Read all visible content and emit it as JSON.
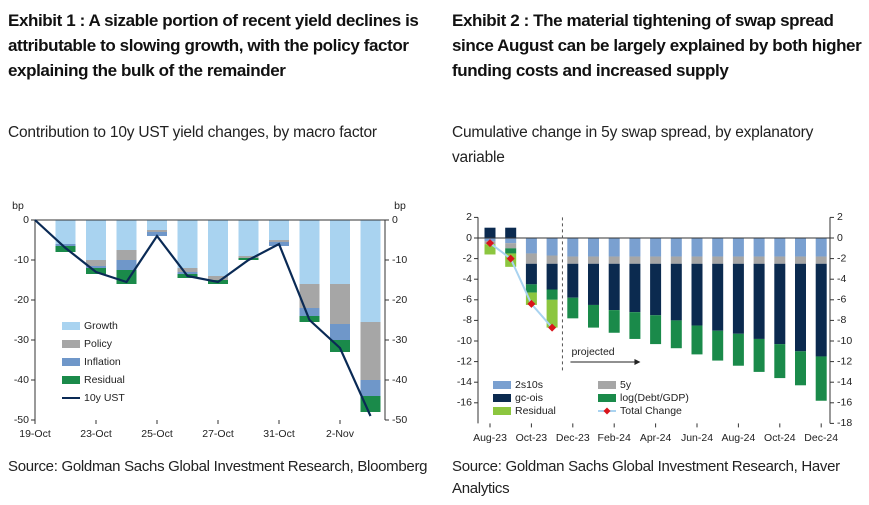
{
  "chart_data": [
    {
      "type": "bar",
      "title": "Exhibit 1 : A sizable portion of recent yield declines is attributable to slowing growth, with the policy factor explaining the bulk of the remainder",
      "subtitle": "Contribution to 10y UST yield changes, by macro factor",
      "source": "Source: Goldman Sachs Global Investment Research, Bloomberg",
      "y_axis_label": "bp",
      "y2_axis_label": "bp",
      "categories": [
        "19-Oct",
        null,
        "23-Oct",
        null,
        "25-Oct",
        null,
        "27-Oct",
        null,
        "31-Oct",
        null,
        "2-Nov",
        null
      ],
      "series": [
        {
          "name": "Growth",
          "color": "#a9d3f0",
          "values": [
            0,
            -6,
            -10,
            -7.5,
            -2.5,
            -12,
            -14,
            -9,
            -5,
            -16,
            -16,
            -25.5
          ]
        },
        {
          "name": "Policy",
          "color": "#a6a6a6",
          "values": [
            0,
            0,
            -1.5,
            -2.5,
            -0.5,
            -1,
            -1,
            -0.5,
            -0.5,
            -6,
            -10,
            -14.5
          ]
        },
        {
          "name": "Inflation",
          "color": "#6f97c9",
          "values": [
            0,
            -0.5,
            -0.5,
            -2.5,
            -1,
            -0.5,
            0,
            0,
            -1,
            -2,
            -4,
            -4
          ]
        },
        {
          "name": "Residual",
          "color": "#1a8a4a",
          "values": [
            0,
            -1.5,
            -1.5,
            -3.5,
            0,
            -1,
            -1,
            -0.5,
            0,
            -1.5,
            -3,
            -4
          ]
        },
        {
          "name": "10y UST",
          "color": "#0a2a55",
          "type": "line",
          "values": [
            0,
            -7,
            -13,
            -15.5,
            -4,
            -14,
            -15.5,
            -10,
            -6,
            -25,
            -32,
            -49
          ]
        }
      ],
      "ylim": [
        -50,
        0
      ],
      "yticks": [
        0,
        -10,
        -20,
        -30,
        -40,
        -50
      ],
      "y2lim": [
        -50,
        0
      ],
      "y2ticks": [
        0,
        -10,
        -20,
        -30,
        -40,
        -50
      ]
    },
    {
      "type": "bar",
      "title": "Exhibit 2 : The material tightening of swap spread since August can be largely explained by both higher funding costs and increased supply",
      "subtitle": "Cumulative change in 5y swap spread, by explanatory variable",
      "source": "Source: Goldman Sachs Global Investment Research, Haver Analytics",
      "categories": [
        "Aug-23",
        null,
        "Oct-23",
        null,
        "Dec-23",
        null,
        "Feb-24",
        null,
        "Apr-24",
        null,
        "Jun-24",
        null,
        "Aug-24",
        null,
        "Oct-24",
        null,
        "Dec-24"
      ],
      "series": [
        {
          "name": "2s10s",
          "color": "#7aa0d0",
          "values": [
            -0.3,
            -0.5,
            -1.5,
            -1.7,
            -1.8,
            -1.8,
            -1.8,
            -1.8,
            -1.8,
            -1.8,
            -1.8,
            -1.8,
            -1.8,
            -1.8,
            -1.8,
            -1.8,
            -1.8
          ]
        },
        {
          "name": "5y",
          "color": "#a6a6a6",
          "values": [
            -0.3,
            -0.5,
            -1,
            -0.8,
            -0.7,
            -0.7,
            -0.7,
            -0.7,
            -0.7,
            -0.7,
            -0.7,
            -0.7,
            -0.7,
            -0.7,
            -0.7,
            -0.7,
            -0.7
          ]
        },
        {
          "name": "gc-ois",
          "color": "#0b2a4f",
          "values": [
            1,
            1,
            -2,
            -2.5,
            -3.3,
            -4,
            -4.5,
            -4.7,
            -5,
            -5.5,
            -6,
            -6.5,
            -6.8,
            -7.3,
            -7.8,
            -8.5,
            -9
          ]
        },
        {
          "name": "log(Debt/GDP)",
          "color": "#1a8a4a",
          "values": [
            0,
            -0.5,
            -0.8,
            -1,
            -2,
            -2.2,
            -2.2,
            -2.6,
            -2.8,
            -2.7,
            -2.8,
            -2.9,
            -3.1,
            -3.2,
            -3.3,
            -3.3,
            -4.3
          ]
        },
        {
          "name": "Residual",
          "color": "#8cc63f",
          "values": [
            -1,
            -1.3,
            -1.2,
            -2.7,
            null,
            null,
            null,
            null,
            null,
            null,
            null,
            null,
            null,
            null,
            null,
            null,
            null
          ]
        },
        {
          "name": "Total Change",
          "color": "#a9d3f0",
          "type": "line",
          "marker": "diamond",
          "marker_color": "#d9141b",
          "values": [
            -0.5,
            -2,
            -6.4,
            -8.7,
            null,
            null,
            null,
            null,
            null,
            null,
            null,
            null,
            null,
            null,
            null,
            null,
            null
          ]
        }
      ],
      "annotations": [
        {
          "text": "projected"
        }
      ],
      "ylim": [
        -18,
        2
      ],
      "yticks": [
        2,
        0,
        -2,
        -4,
        -6,
        -8,
        -10,
        -12,
        -14,
        -16
      ],
      "y2lim": [
        -18,
        2
      ],
      "y2ticks": [
        2,
        0,
        -2,
        -4,
        -6,
        -8,
        -10,
        -12,
        -14,
        -16,
        -18
      ]
    }
  ]
}
